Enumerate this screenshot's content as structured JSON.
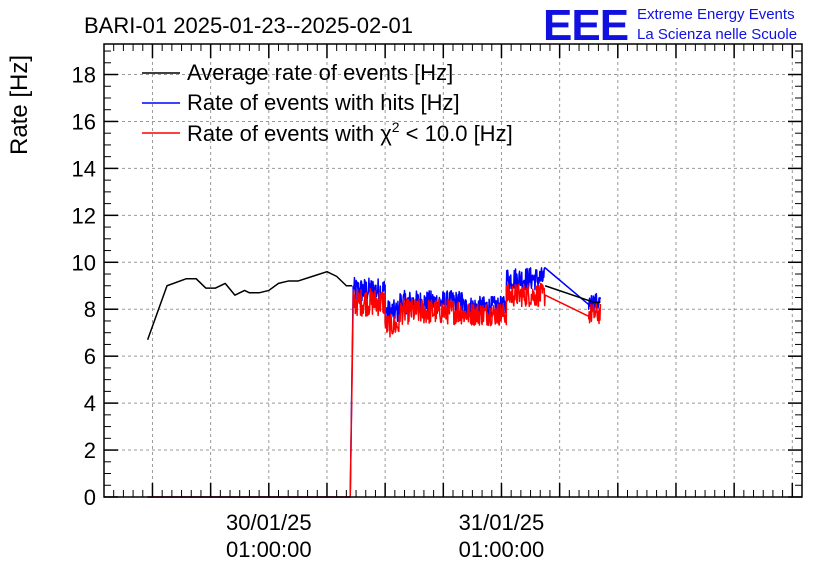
{
  "header": {
    "title": "BARI-01 2025-01-23--2025-02-01",
    "logo_text": "EEE",
    "logo_line1": "Extreme Energy Events",
    "logo_line2": "La Scienza nelle Scuole"
  },
  "chart_data": {
    "type": "line",
    "title": "BARI-01 2025-01-23--2025-02-01",
    "xlabel": "",
    "ylabel": "Rate [Hz]",
    "ylim": [
      0,
      19.3
    ],
    "yticks": [
      0,
      2,
      4,
      6,
      8,
      10,
      12,
      14,
      16,
      18
    ],
    "xlim_hours": [
      -17,
      55
    ],
    "xtick_labels": [
      {
        "hour": 0,
        "date": "30/01/25",
        "time": "01:00:00"
      },
      {
        "hour": 24,
        "date": "31/01/25",
        "time": "01:00:00"
      }
    ],
    "grid": true,
    "legend_position": "top-left",
    "colors": {
      "avg": "#000000",
      "hits": "#0000ff",
      "chi2": "#ff0000"
    },
    "series": [
      {
        "name": "Average rate of events [Hz]",
        "key": "avg",
        "x": [
          -12.5,
          -10.5,
          -8.5,
          -7.5,
          -6.5,
          -5.5,
          -4.5,
          -3.5,
          -2.5,
          -2.0,
          -1.0,
          0.0,
          1.0,
          2.0,
          3.0,
          4.5,
          6.0,
          7.0,
          8.0,
          8.6
        ],
        "y": [
          6.7,
          9.0,
          9.3,
          9.3,
          8.9,
          8.9,
          9.1,
          8.6,
          8.8,
          8.7,
          8.7,
          8.8,
          9.1,
          9.2,
          9.2,
          9.4,
          9.6,
          9.4,
          9.0,
          9.0
        ],
        "tail_x": [
          28.5,
          33.5,
          34.2
        ],
        "tail_y": [
          9.0,
          8.3,
          8.3
        ]
      },
      {
        "name": "Rate of events with hits [Hz]",
        "key": "hits",
        "zero_x": [
          -12.5,
          8.4
        ],
        "rise_x": [
          8.4,
          8.7
        ],
        "rise_y": [
          0,
          8.8
        ],
        "segments": [
          {
            "x0": 8.7,
            "x1": 12.0,
            "base": 8.8,
            "amp": 0.55
          },
          {
            "x0": 12.0,
            "x1": 13.5,
            "base": 7.9,
            "amp": 0.5
          },
          {
            "x0": 13.5,
            "x1": 20.0,
            "base": 8.3,
            "amp": 0.5
          },
          {
            "x0": 20.0,
            "x1": 24.5,
            "base": 8.1,
            "amp": 0.45
          },
          {
            "x0": 24.5,
            "x1": 28.5,
            "base": 9.3,
            "amp": 0.5
          },
          {
            "x0": 33.0,
            "x1": 34.2,
            "base": 8.3,
            "amp": 0.4
          }
        ],
        "tail_x": [
          28.5,
          33.0
        ],
        "tail_y": [
          9.3,
          8.2
        ]
      },
      {
        "name": "Rate of events with χ2 < 10.0 [Hz]",
        "key": "chi2",
        "zero_x": [
          -12.5,
          8.4
        ],
        "rise_x": [
          8.4,
          8.7
        ],
        "rise_y": [
          0,
          8.2
        ],
        "segments": [
          {
            "x0": 8.7,
            "x1": 12.0,
            "base": 8.3,
            "amp": 0.6
          },
          {
            "x0": 12.0,
            "x1": 13.5,
            "base": 7.3,
            "amp": 0.5
          },
          {
            "x0": 13.5,
            "x1": 20.0,
            "base": 7.9,
            "amp": 0.55
          },
          {
            "x0": 20.0,
            "x1": 24.5,
            "base": 7.8,
            "amp": 0.5
          },
          {
            "x0": 24.5,
            "x1": 28.5,
            "base": 8.6,
            "amp": 0.5
          },
          {
            "x0": 33.0,
            "x1": 34.2,
            "base": 7.8,
            "amp": 0.45
          }
        ],
        "tail_x": [
          28.5,
          33.0
        ],
        "tail_y": [
          8.9,
          7.7
        ]
      }
    ]
  },
  "legend": {
    "avg_label": "Average rate of events [Hz]",
    "hits_label": "Rate of events with hits [Hz]",
    "chi2_prefix": "Rate of events with χ",
    "chi2_sup": "2",
    "chi2_suffix": " < 10.0 [Hz]"
  }
}
